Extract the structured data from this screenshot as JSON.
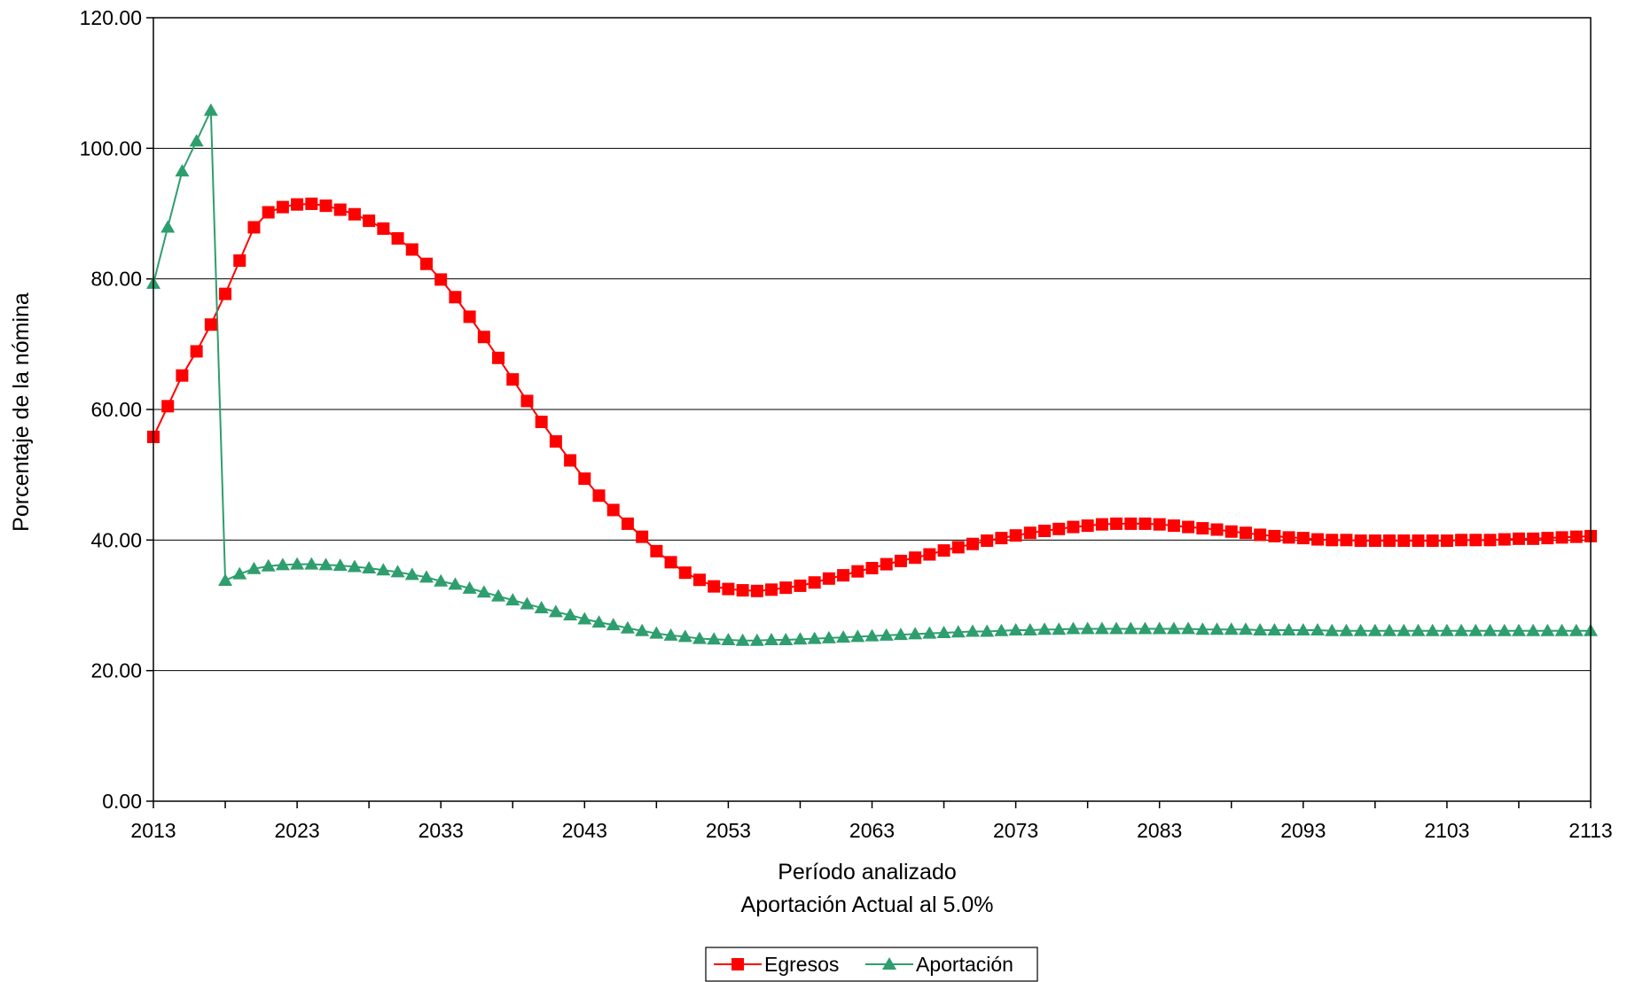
{
  "chart_data": {
    "type": "line",
    "title": "",
    "xlabel": "Período analizado",
    "xlabel_sub": "Aportación Actual al 5.0%",
    "ylabel": "Porcentaje de la nómina",
    "ylim": [
      0,
      120
    ],
    "xlim": [
      2013,
      2113
    ],
    "y_ticks": [
      "0.00",
      "20.00",
      "40.00",
      "60.00",
      "80.00",
      "100.00",
      "120.00"
    ],
    "x_ticks": [
      "2013",
      "2023",
      "2033",
      "2043",
      "2053",
      "2063",
      "2073",
      "2083",
      "2093",
      "2103",
      "2113"
    ],
    "grid": "horizontal",
    "legend_position": "bottom-center",
    "x": [
      2013,
      2014,
      2015,
      2016,
      2017,
      2018,
      2019,
      2020,
      2021,
      2022,
      2023,
      2024,
      2025,
      2026,
      2027,
      2028,
      2029,
      2030,
      2031,
      2032,
      2033,
      2034,
      2035,
      2036,
      2037,
      2038,
      2039,
      2040,
      2041,
      2042,
      2043,
      2044,
      2045,
      2046,
      2047,
      2048,
      2049,
      2050,
      2051,
      2052,
      2053,
      2054,
      2055,
      2056,
      2057,
      2058,
      2059,
      2060,
      2061,
      2062,
      2063,
      2064,
      2065,
      2066,
      2067,
      2068,
      2069,
      2070,
      2071,
      2072,
      2073,
      2074,
      2075,
      2076,
      2077,
      2078,
      2079,
      2080,
      2081,
      2082,
      2083,
      2084,
      2085,
      2086,
      2087,
      2088,
      2089,
      2090,
      2091,
      2092,
      2093,
      2094,
      2095,
      2096,
      2097,
      2098,
      2099,
      2100,
      2101,
      2102,
      2103,
      2104,
      2105,
      2106,
      2107,
      2108,
      2109,
      2110,
      2111,
      2112,
      2113
    ],
    "series": [
      {
        "name": "Egresos",
        "color": "#ff0000",
        "marker": "square",
        "values": [
          55.8,
          60.5,
          65.2,
          68.9,
          73.0,
          77.7,
          82.8,
          87.9,
          90.2,
          91.0,
          91.4,
          91.5,
          91.2,
          90.6,
          89.9,
          88.9,
          87.7,
          86.2,
          84.5,
          82.3,
          79.9,
          77.2,
          74.2,
          71.1,
          67.9,
          64.6,
          61.3,
          58.1,
          55.1,
          52.2,
          49.4,
          46.8,
          44.6,
          42.5,
          40.5,
          38.3,
          36.6,
          35.0,
          33.9,
          32.9,
          32.5,
          32.3,
          32.2,
          32.4,
          32.7,
          33.0,
          33.5,
          34.1,
          34.6,
          35.2,
          35.7,
          36.3,
          36.8,
          37.3,
          37.8,
          38.4,
          38.9,
          39.4,
          39.9,
          40.3,
          40.7,
          41.1,
          41.4,
          41.7,
          42.0,
          42.2,
          42.4,
          42.5,
          42.5,
          42.5,
          42.4,
          42.2,
          42.0,
          41.8,
          41.6,
          41.3,
          41.1,
          40.8,
          40.6,
          40.4,
          40.3,
          40.1,
          40.0,
          40.0,
          39.9,
          39.9,
          39.9,
          39.9,
          39.9,
          39.9,
          39.9,
          40.0,
          40.0,
          40.0,
          40.1,
          40.2,
          40.2,
          40.3,
          40.4,
          40.5,
          40.6
        ]
      },
      {
        "name": "Aportación",
        "color": "#2e9e6e",
        "marker": "triangle",
        "values": [
          79.3,
          87.9,
          96.5,
          101.1,
          105.8,
          33.8,
          34.8,
          35.6,
          36.0,
          36.2,
          36.3,
          36.3,
          36.2,
          36.1,
          35.9,
          35.7,
          35.4,
          35.1,
          34.7,
          34.3,
          33.7,
          33.2,
          32.6,
          32.0,
          31.4,
          30.8,
          30.2,
          29.6,
          29.0,
          28.5,
          27.9,
          27.4,
          27.0,
          26.5,
          26.1,
          25.7,
          25.4,
          25.2,
          24.9,
          24.8,
          24.7,
          24.6,
          24.6,
          24.7,
          24.7,
          24.8,
          24.9,
          25.0,
          25.1,
          25.2,
          25.3,
          25.4,
          25.5,
          25.6,
          25.7,
          25.8,
          25.9,
          26.0,
          26.0,
          26.1,
          26.2,
          26.2,
          26.3,
          26.3,
          26.4,
          26.4,
          26.4,
          26.4,
          26.4,
          26.4,
          26.4,
          26.4,
          26.4,
          26.3,
          26.3,
          26.3,
          26.3,
          26.2,
          26.2,
          26.2,
          26.2,
          26.2,
          26.1,
          26.1,
          26.1,
          26.1,
          26.1,
          26.1,
          26.1,
          26.1,
          26.1,
          26.1,
          26.1,
          26.1,
          26.1,
          26.1,
          26.1,
          26.1,
          26.1,
          26.1,
          26.1
        ]
      }
    ]
  }
}
